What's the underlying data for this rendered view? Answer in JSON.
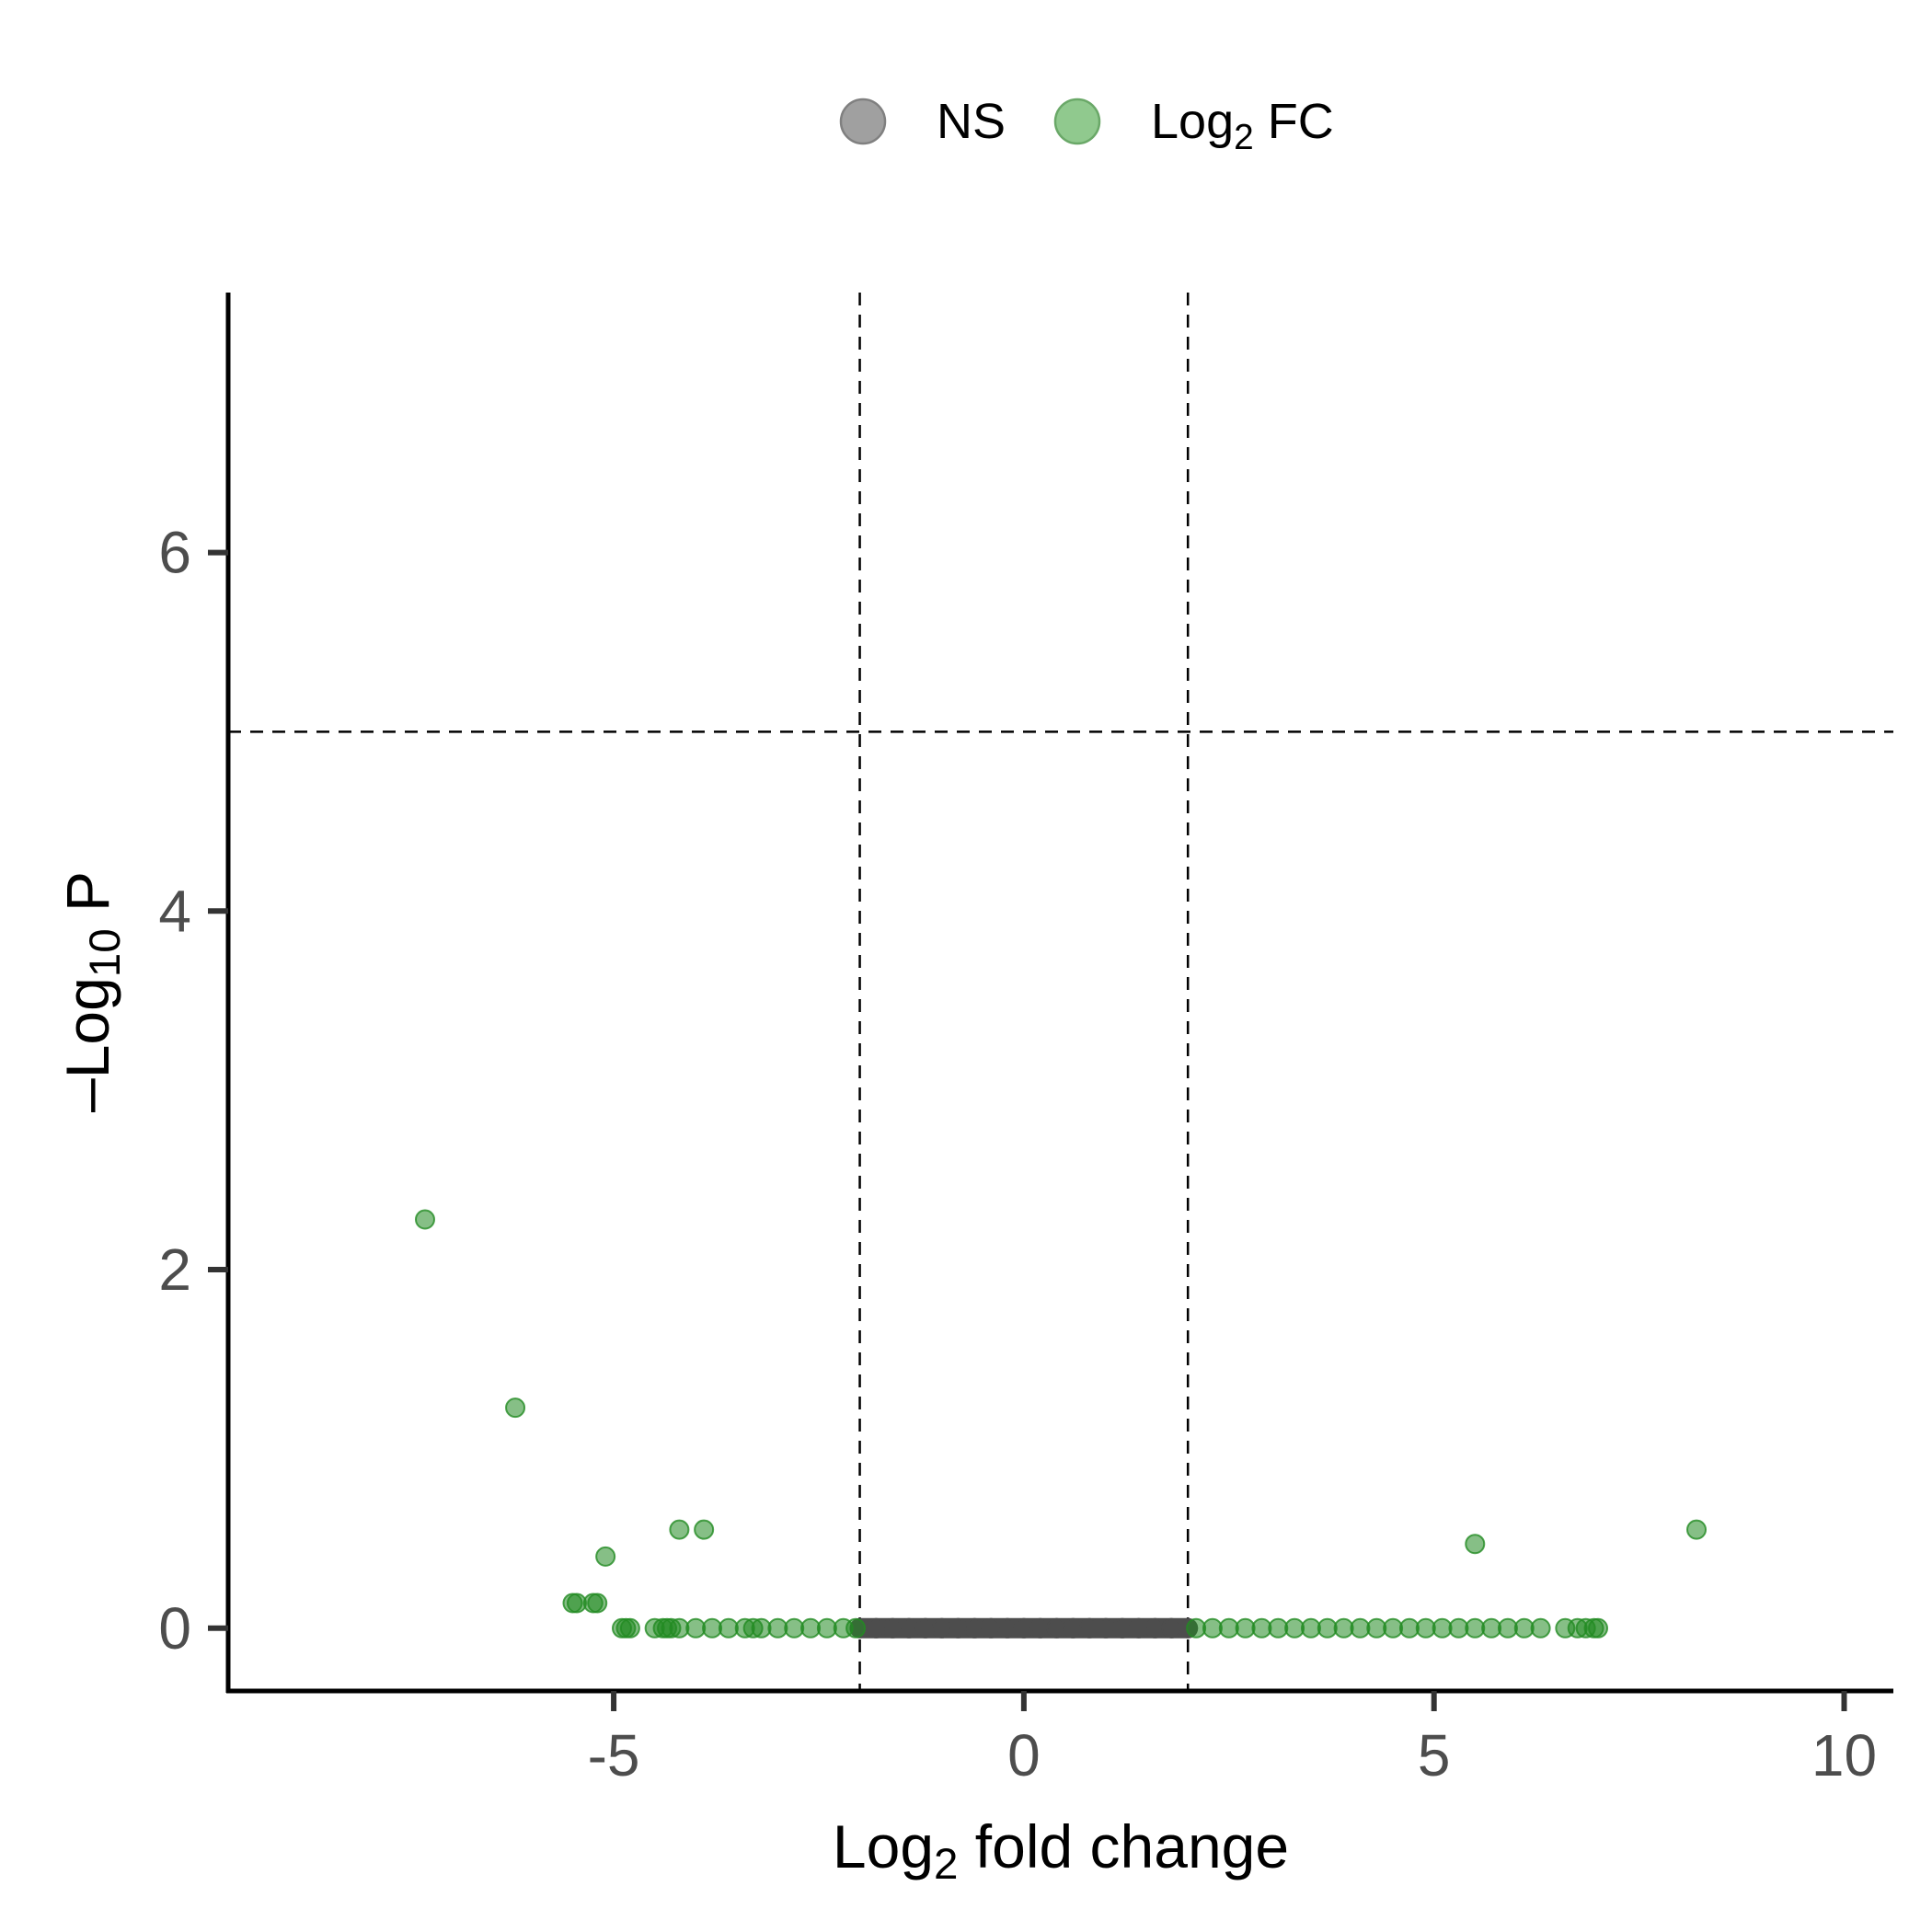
{
  "chart_data": {
    "type": "scatter",
    "title": "",
    "xlabel": {
      "prefix": "Log",
      "sub": "2",
      "suffix": " fold change"
    },
    "ylabel": {
      "prefix": "–Log",
      "sub": "10",
      "suffix": " P"
    },
    "xlim": [
      -9.7,
      10.6
    ],
    "ylim": [
      -0.35,
      7.45
    ],
    "x_ticks": [
      -5,
      0,
      5,
      10
    ],
    "x_tick_labels": [
      "-5",
      "0",
      "5",
      "10"
    ],
    "y_ticks": [
      0,
      2,
      4,
      6
    ],
    "y_tick_labels": [
      "0",
      "2",
      "4",
      "6"
    ],
    "grid": false,
    "legend_position": "top",
    "thresholds": {
      "x": [
        -2,
        2
      ],
      "y": 5
    },
    "legend": [
      {
        "key": "ns",
        "label": "NS",
        "label_sub": "",
        "label_suffix": ""
      },
      {
        "key": "fc",
        "label": "Log",
        "label_sub": "2",
        "label_suffix": " FC"
      }
    ],
    "colors": {
      "ns": "#4d4d4d",
      "fc": "#228b22",
      "ns_legend": "#a0a0a0",
      "fc_legend": "#90c98e"
    },
    "series": [
      {
        "key": "ns",
        "x": [
          -2.0,
          -1.8,
          -1.6,
          -1.4,
          -1.2,
          -1.0,
          -0.8,
          -0.6,
          -0.4,
          -0.2,
          0.0,
          0.2,
          0.4,
          0.6,
          0.8,
          1.0,
          1.2,
          1.4,
          1.6,
          1.8,
          2.0
        ],
        "y": [
          0,
          0,
          0,
          0,
          0,
          0,
          0,
          0,
          0,
          0,
          0,
          0,
          0,
          0,
          0,
          0,
          0,
          0,
          0,
          0,
          0
        ]
      },
      {
        "key": "fc",
        "x": [
          -7.3,
          -6.2,
          -4.2,
          -3.9,
          -5.1,
          -5.5,
          -5.45,
          -5.25,
          -5.2,
          -4.9,
          -4.85,
          -4.8,
          -4.5,
          -4.4,
          -4.35,
          -4.3,
          -4.2,
          -4.0,
          -3.8,
          -3.6,
          -3.4,
          -3.3,
          -3.2,
          -3.0,
          -2.8,
          -2.6,
          -2.4,
          -2.2,
          -2.05,
          2.1,
          2.3,
          2.5,
          2.7,
          2.9,
          3.1,
          3.3,
          3.5,
          3.7,
          3.9,
          4.1,
          4.3,
          4.5,
          4.7,
          4.9,
          5.1,
          5.3,
          5.5,
          5.7,
          5.9,
          6.1,
          6.3,
          6.6,
          6.75,
          6.85,
          6.95,
          7.0,
          5.5,
          8.2
        ],
        "y": [
          2.28,
          1.23,
          0.55,
          0.55,
          0.4,
          0.14,
          0.14,
          0.14,
          0.14,
          0,
          0,
          0,
          0,
          0,
          0,
          0,
          0,
          0,
          0,
          0,
          0,
          0,
          0,
          0,
          0,
          0,
          0,
          0,
          0,
          0,
          0,
          0,
          0,
          0,
          0,
          0,
          0,
          0,
          0,
          0,
          0,
          0,
          0,
          0,
          0,
          0,
          0,
          0,
          0,
          0,
          0,
          0,
          0,
          0,
          0,
          0,
          0.47,
          0.55
        ]
      }
    ]
  }
}
